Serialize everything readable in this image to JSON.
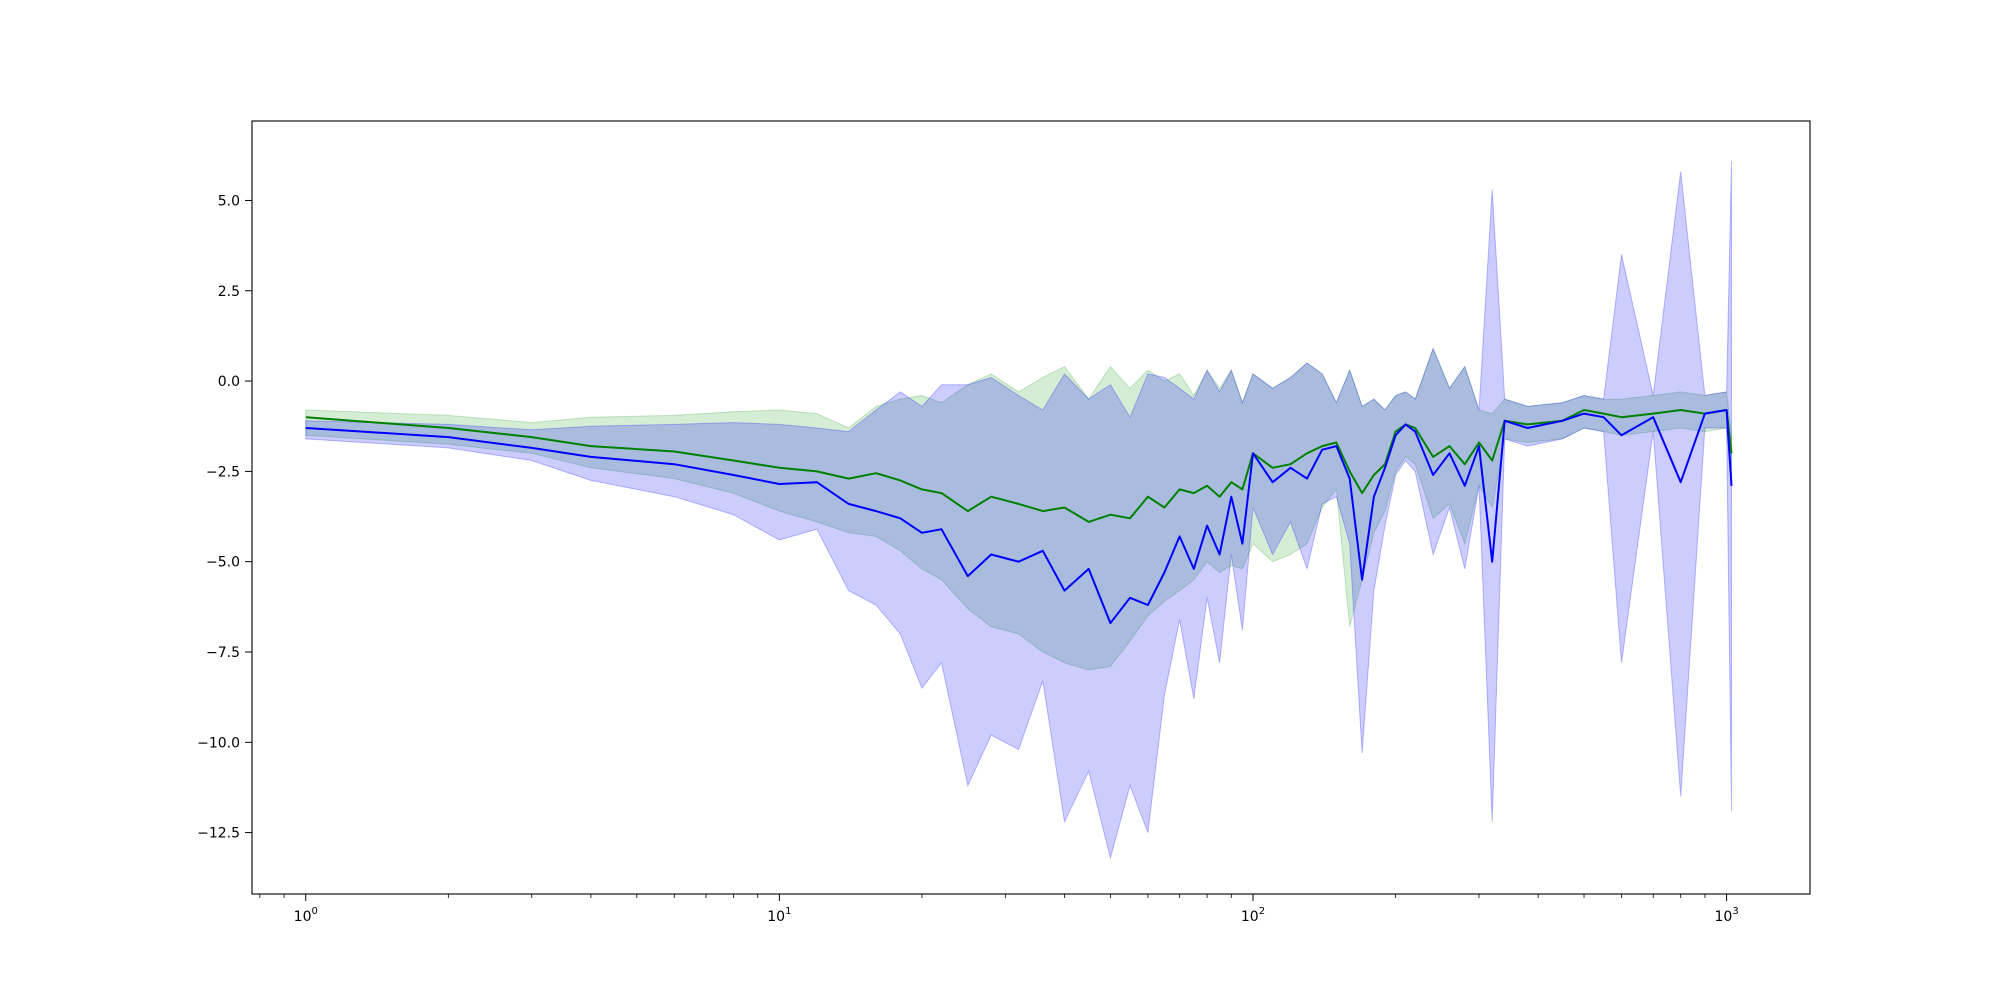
{
  "chart_data": {
    "type": "line",
    "title": "",
    "xlabel": "",
    "ylabel": "",
    "xscale": "log",
    "xlim": [
      0.77,
      1500
    ],
    "ylim": [
      -14.2,
      7.2
    ],
    "grid": false,
    "legend": "none",
    "x_major_ticks": [
      1,
      10,
      100,
      1000
    ],
    "x_tick_labels": [
      {
        "base": "10",
        "exp": "0"
      },
      {
        "base": "10",
        "exp": "1"
      },
      {
        "base": "10",
        "exp": "2"
      },
      {
        "base": "10",
        "exp": "3"
      }
    ],
    "y_ticks": [
      5.0,
      2.5,
      0.0,
      -2.5,
      -5.0,
      -7.5,
      -10.0,
      -12.5
    ],
    "y_tick_labels": [
      "5.0",
      "2.5",
      "0.0",
      "−2.5",
      "−5.0",
      "−7.5",
      "−10.0",
      "−12.5"
    ],
    "series": [
      {
        "color": "#008000",
        "band_color": "#2ca02c",
        "x": [
          1,
          2,
          3,
          4,
          6,
          8,
          10,
          12,
          14,
          16,
          18,
          20,
          22,
          25,
          28,
          32,
          36,
          40,
          45,
          50,
          55,
          60,
          65,
          70,
          75,
          80,
          85,
          90,
          95,
          100,
          110,
          120,
          130,
          140,
          150,
          160,
          170,
          180,
          190,
          200,
          210,
          220,
          240,
          260,
          280,
          300,
          320,
          340,
          380,
          450,
          500,
          550,
          600,
          700,
          800,
          900,
          1000,
          1024
        ],
        "y": [
          -1.0,
          -1.3,
          -1.55,
          -1.8,
          -1.95,
          -2.2,
          -2.4,
          -2.5,
          -2.7,
          -2.55,
          -2.75,
          -3.0,
          -3.1,
          -3.6,
          -3.2,
          -3.4,
          -3.6,
          -3.5,
          -3.9,
          -3.7,
          -3.8,
          -3.2,
          -3.5,
          -3.0,
          -3.1,
          -2.9,
          -3.2,
          -2.8,
          -3.0,
          -2.0,
          -2.4,
          -2.3,
          -2.0,
          -1.8,
          -1.7,
          -2.5,
          -3.1,
          -2.6,
          -2.3,
          -1.4,
          -1.2,
          -1.3,
          -2.1,
          -1.8,
          -2.3,
          -1.7,
          -2.2,
          -1.1,
          -1.2,
          -1.1,
          -0.8,
          -0.9,
          -1.0,
          -0.9,
          -0.8,
          -0.9,
          -0.8,
          -2.0
        ],
        "lower": [
          -1.5,
          -1.75,
          -2.0,
          -2.4,
          -2.7,
          -3.1,
          -3.6,
          -3.9,
          -4.2,
          -4.3,
          -4.7,
          -5.2,
          -5.5,
          -6.3,
          -6.8,
          -7.0,
          -7.5,
          -7.8,
          -8.0,
          -7.9,
          -7.2,
          -6.5,
          -6.1,
          -5.8,
          -5.5,
          -5.0,
          -5.3,
          -5.1,
          -5.2,
          -4.5,
          -5.0,
          -4.8,
          -4.5,
          -3.5,
          -3.0,
          -6.8,
          -5.5,
          -4.2,
          -3.6,
          -2.5,
          -2.1,
          -2.3,
          -3.8,
          -3.4,
          -4.5,
          -2.9,
          -3.5,
          -1.6,
          -1.7,
          -1.6,
          -1.3,
          -1.4,
          -1.5,
          -1.4,
          -1.3,
          -1.4,
          -1.3,
          -2.8
        ],
        "upper": [
          -0.8,
          -0.95,
          -1.15,
          -1.0,
          -0.95,
          -0.85,
          -0.8,
          -0.9,
          -1.3,
          -0.7,
          -0.5,
          -0.4,
          -0.6,
          -0.1,
          0.2,
          -0.3,
          0.1,
          0.4,
          -0.5,
          0.4,
          -0.2,
          0.3,
          0.0,
          0.2,
          -0.4,
          0.3,
          -0.2,
          0.3,
          -0.6,
          0.2,
          -0.2,
          0.1,
          0.5,
          0.2,
          -0.6,
          0.3,
          -0.7,
          -0.5,
          -0.8,
          -0.4,
          -0.3,
          -0.5,
          0.9,
          -0.2,
          0.4,
          -0.8,
          -0.9,
          -0.5,
          -0.7,
          -0.6,
          -0.4,
          -0.5,
          -0.5,
          -0.4,
          -0.3,
          -0.4,
          -0.3,
          -1.5
        ]
      },
      {
        "color": "#0000ff",
        "band_color": "#0000ff",
        "x": [
          1,
          2,
          3,
          4,
          6,
          8,
          10,
          12,
          14,
          16,
          18,
          20,
          22,
          25,
          28,
          32,
          36,
          40,
          45,
          50,
          55,
          60,
          65,
          70,
          75,
          80,
          85,
          90,
          95,
          100,
          110,
          120,
          130,
          140,
          150,
          160,
          170,
          180,
          190,
          200,
          210,
          220,
          240,
          260,
          280,
          300,
          320,
          340,
          380,
          450,
          500,
          550,
          600,
          700,
          800,
          900,
          1000,
          1024
        ],
        "y": [
          -1.3,
          -1.55,
          -1.85,
          -2.1,
          -2.3,
          -2.6,
          -2.85,
          -2.8,
          -3.4,
          -3.6,
          -3.8,
          -4.2,
          -4.1,
          -5.4,
          -4.8,
          -5.0,
          -4.7,
          -5.8,
          -5.2,
          -6.7,
          -6.0,
          -6.2,
          -5.3,
          -4.3,
          -5.2,
          -4.0,
          -4.8,
          -3.2,
          -4.5,
          -2.0,
          -2.8,
          -2.4,
          -2.7,
          -1.9,
          -1.8,
          -2.7,
          -5.5,
          -3.2,
          -2.4,
          -1.5,
          -1.2,
          -1.4,
          -2.6,
          -2.0,
          -2.9,
          -1.8,
          -5.0,
          -1.1,
          -1.3,
          -1.1,
          -0.9,
          -1.0,
          -1.5,
          -1.0,
          -2.8,
          -0.9,
          -0.8,
          -2.9
        ],
        "lower": [
          -1.6,
          -1.85,
          -2.2,
          -2.75,
          -3.2,
          -3.7,
          -4.4,
          -4.1,
          -5.8,
          -6.2,
          -7.0,
          -8.5,
          -7.8,
          -11.2,
          -9.8,
          -10.2,
          -8.3,
          -12.2,
          -10.8,
          -13.2,
          -11.2,
          -12.5,
          -8.7,
          -6.6,
          -8.8,
          -6.0,
          -7.8,
          -4.8,
          -6.9,
          -3.5,
          -4.8,
          -3.9,
          -5.2,
          -3.4,
          -3.2,
          -4.5,
          -10.3,
          -5.8,
          -4.0,
          -2.6,
          -2.2,
          -2.5,
          -4.8,
          -3.5,
          -5.2,
          -2.9,
          -12.2,
          -1.6,
          -1.8,
          -1.6,
          -1.3,
          -1.4,
          -7.8,
          -1.4,
          -11.5,
          -1.3,
          -1.3,
          -11.9
        ],
        "upper": [
          -1.1,
          -1.2,
          -1.35,
          -1.25,
          -1.2,
          -1.15,
          -1.2,
          -1.3,
          -1.4,
          -0.8,
          -0.3,
          -0.7,
          -0.1,
          -0.1,
          0.1,
          -0.4,
          -0.8,
          0.2,
          -0.5,
          -0.1,
          -1.0,
          0.2,
          0.1,
          -0.2,
          -0.5,
          0.3,
          -0.3,
          0.3,
          -0.6,
          0.2,
          -0.2,
          0.1,
          0.5,
          0.2,
          -0.6,
          0.3,
          -0.7,
          -0.5,
          -0.8,
          -0.4,
          -0.3,
          -0.5,
          0.9,
          -0.2,
          0.4,
          -0.8,
          5.3,
          -0.5,
          -0.7,
          -0.6,
          -0.4,
          -0.5,
          3.5,
          -0.4,
          5.8,
          -0.4,
          -0.3,
          6.1
        ]
      }
    ]
  }
}
